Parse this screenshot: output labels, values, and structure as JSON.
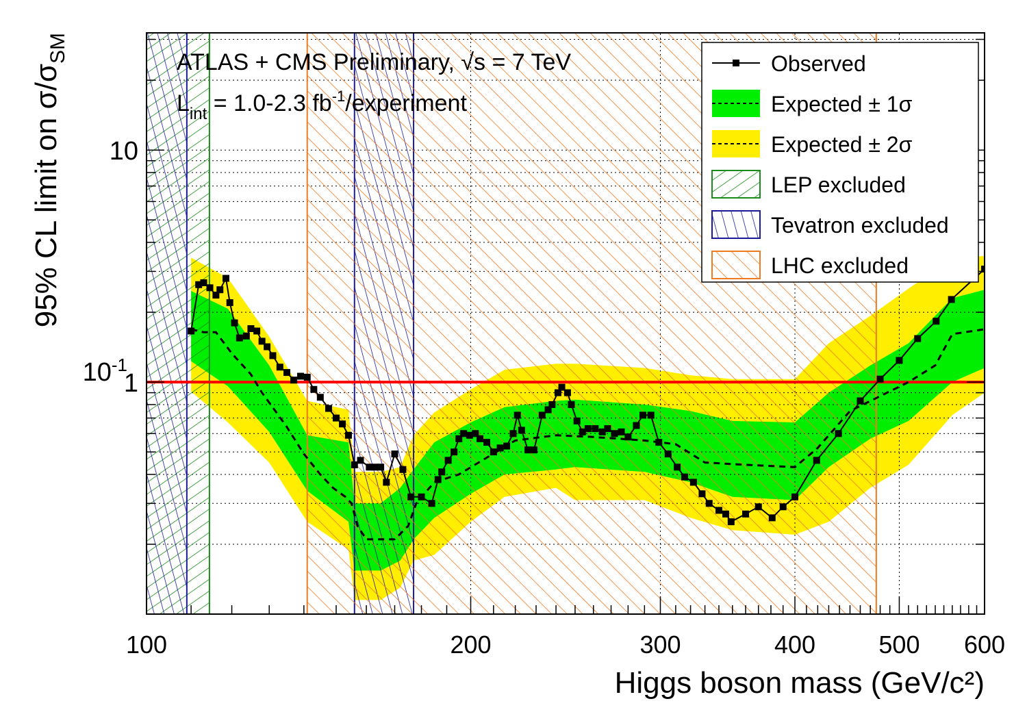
{
  "chart_data": {
    "type": "line",
    "title_line1": "ATLAS + CMS Preliminary, √s = 7 TeV",
    "title_line2": {
      "l": "L",
      "l_sub": "int",
      "mid": " = 1.0-2.3 fb",
      "sup": "-1",
      "end": "/experiment"
    },
    "xlabel": "Higgs boson mass (GeV/c²)",
    "ylabel": "95% CL limit on σ/σ",
    "ylabel_sub": "SM",
    "xscale": "log",
    "yscale": "log",
    "xlim": [
      100,
      600
    ],
    "ylim": [
      0.1,
      32
    ],
    "x_ticks": [
      "100",
      "200",
      "300",
      "400",
      "500",
      "600"
    ],
    "y_ticks": [
      {
        "base": "10",
        "exp": "-1"
      },
      {
        "base": "1",
        "exp": ""
      },
      {
        "base": "10",
        "exp": ""
      }
    ],
    "grid": true,
    "legend_position": "top-right",
    "reference_line": {
      "y": 1,
      "color": "#ff0000"
    },
    "colors": {
      "observed": "#000000",
      "band1": "#00ee00",
      "band2": "#ffee00",
      "lep": "#1a8a1a",
      "tevatron": "#1a1a99",
      "lhc": "#f07a20"
    },
    "legend": [
      {
        "label": "Observed",
        "kind": "observed"
      },
      {
        "label": "Expected ± 1σ",
        "kind": "band1"
      },
      {
        "label": "Expected ± 2σ",
        "kind": "band2"
      },
      {
        "label": "LEP excluded",
        "kind": "lep"
      },
      {
        "label": "Tevatron excluded",
        "kind": "tevatron"
      },
      {
        "label": "LHC excluded",
        "kind": "lhc"
      }
    ],
    "excluded_regions": [
      {
        "name": "LEP excluded",
        "kind": "lep",
        "range": [
          100,
          114.4
        ]
      },
      {
        "name": "Tevatron excluded",
        "kind": "tevatron",
        "range": [
          100,
          109
        ]
      },
      {
        "name": "Tevatron excluded",
        "kind": "tevatron",
        "range": [
          156,
          177
        ]
      },
      {
        "name": "LHC excluded",
        "kind": "lhc",
        "range": [
          141,
          476
        ]
      }
    ],
    "observed": [
      [
        110,
        1.66
      ],
      [
        111.8,
        2.63
      ],
      [
        113,
        2.68
      ],
      [
        114.5,
        2.55
      ],
      [
        116,
        2.37
      ],
      [
        117,
        2.5
      ],
      [
        118.5,
        2.8
      ],
      [
        119.5,
        2.2
      ],
      [
        120.7,
        1.8
      ],
      [
        122,
        1.55
      ],
      [
        123.8,
        1.58
      ],
      [
        125,
        1.7
      ],
      [
        126.6,
        1.66
      ],
      [
        128,
        1.5
      ],
      [
        129.4,
        1.42
      ],
      [
        131,
        1.3
      ],
      [
        133,
        1.16
      ],
      [
        135,
        1.1
      ],
      [
        137,
        1.02
      ],
      [
        139,
        1.06
      ],
      [
        141,
        1.05
      ],
      [
        143,
        0.93
      ],
      [
        145,
        0.86
      ],
      [
        147.6,
        0.77
      ],
      [
        150,
        0.7
      ],
      [
        152,
        0.66
      ],
      [
        154,
        0.59
      ],
      [
        156,
        0.44
      ],
      [
        158,
        0.46
      ],
      [
        161,
        0.43
      ],
      [
        163,
        0.43
      ],
      [
        165,
        0.43
      ],
      [
        167,
        0.37
      ],
      [
        170,
        0.49
      ],
      [
        173,
        0.42
      ],
      [
        176,
        0.32
      ],
      [
        180,
        0.32
      ],
      [
        184,
        0.3
      ],
      [
        186.5,
        0.38
      ],
      [
        188,
        0.41
      ],
      [
        190.6,
        0.46
      ],
      [
        193,
        0.5
      ],
      [
        195,
        0.57
      ],
      [
        197,
        0.6
      ],
      [
        199.5,
        0.59
      ],
      [
        202,
        0.6
      ],
      [
        204,
        0.57
      ],
      [
        207,
        0.55
      ],
      [
        210,
        0.5
      ],
      [
        213,
        0.52
      ],
      [
        216,
        0.53
      ],
      [
        219,
        0.6
      ],
      [
        221,
        0.72
      ],
      [
        223,
        0.62
      ],
      [
        226,
        0.51
      ],
      [
        229,
        0.51
      ],
      [
        233,
        0.72
      ],
      [
        236,
        0.76
      ],
      [
        238,
        0.8
      ],
      [
        241,
        0.9
      ],
      [
        243,
        0.95
      ],
      [
        246,
        0.9
      ],
      [
        248,
        0.8
      ],
      [
        251,
        0.68
      ],
      [
        254,
        0.61
      ],
      [
        257,
        0.63
      ],
      [
        261,
        0.63
      ],
      [
        265,
        0.61
      ],
      [
        268,
        0.63
      ],
      [
        272,
        0.6
      ],
      [
        276,
        0.61
      ],
      [
        280,
        0.58
      ],
      [
        285,
        0.65
      ],
      [
        289,
        0.72
      ],
      [
        294,
        0.72
      ],
      [
        299,
        0.55
      ],
      [
        305,
        0.49
      ],
      [
        311,
        0.43
      ],
      [
        316,
        0.39
      ],
      [
        322,
        0.37
      ],
      [
        328,
        0.33
      ],
      [
        333,
        0.3
      ],
      [
        340,
        0.28
      ],
      [
        345,
        0.27
      ],
      [
        349,
        0.25
      ],
      [
        360,
        0.27
      ],
      [
        370,
        0.29
      ],
      [
        381,
        0.26
      ],
      [
        390,
        0.29
      ],
      [
        400,
        0.32
      ],
      [
        419,
        0.46
      ],
      [
        439,
        0.6
      ],
      [
        460,
        0.83
      ],
      [
        480,
        1.03
      ],
      [
        500,
        1.24
      ],
      [
        520,
        1.54
      ],
      [
        541,
        1.83
      ],
      [
        559,
        2.27
      ],
      [
        600,
        3.07
      ]
    ],
    "expected_median": [
      [
        110,
        1.69
      ],
      [
        113,
        1.64
      ],
      [
        116,
        1.64
      ],
      [
        120,
        1.33
      ],
      [
        125,
        1.08
      ],
      [
        128,
        0.9
      ],
      [
        132,
        0.74
      ],
      [
        135,
        0.64
      ],
      [
        140,
        0.49
      ],
      [
        145,
        0.4
      ],
      [
        149,
        0.35
      ],
      [
        153,
        0.32
      ],
      [
        155,
        0.3
      ],
      [
        157,
        0.24
      ],
      [
        160,
        0.21
      ],
      [
        170,
        0.21
      ],
      [
        175,
        0.24
      ],
      [
        178,
        0.3
      ],
      [
        185,
        0.37
      ],
      [
        195,
        0.4
      ],
      [
        205,
        0.46
      ],
      [
        220,
        0.56
      ],
      [
        240,
        0.59
      ],
      [
        260,
        0.58
      ],
      [
        290,
        0.56
      ],
      [
        310,
        0.54
      ],
      [
        330,
        0.45
      ],
      [
        360,
        0.44
      ],
      [
        400,
        0.43
      ],
      [
        420,
        0.52
      ],
      [
        450,
        0.75
      ],
      [
        480,
        0.87
      ],
      [
        510,
        1.0
      ],
      [
        540,
        1.18
      ],
      [
        560,
        1.61
      ],
      [
        600,
        1.69
      ]
    ],
    "bands": {
      "x": [
        110,
        119,
        130,
        141,
        154,
        156,
        165,
        172,
        177,
        185,
        200,
        215,
        240,
        250,
        290,
        320,
        350,
        400,
        430,
        470,
        510,
        560,
        600
      ],
      "minus2sigma": [
        0.91,
        0.67,
        0.45,
        0.25,
        0.19,
        0.115,
        0.115,
        0.13,
        0.17,
        0.18,
        0.25,
        0.32,
        0.35,
        0.31,
        0.31,
        0.26,
        0.23,
        0.22,
        0.25,
        0.35,
        0.44,
        0.72,
        0.9
      ],
      "minus1sigma": [
        1.23,
        0.96,
        0.61,
        0.34,
        0.25,
        0.154,
        0.154,
        0.17,
        0.21,
        0.26,
        0.33,
        0.4,
        0.42,
        0.43,
        0.41,
        0.37,
        0.32,
        0.31,
        0.43,
        0.57,
        0.68,
        1.0,
        1.15
      ],
      "plus1sigma": [
        2.47,
        2.07,
        1.18,
        0.59,
        0.55,
        0.3,
        0.3,
        0.35,
        0.42,
        0.55,
        0.67,
        0.78,
        0.83,
        0.84,
        0.8,
        0.75,
        0.68,
        0.67,
        0.9,
        1.18,
        1.47,
        2.3,
        2.5
      ],
      "plus2sigma": [
        3.44,
        2.81,
        1.57,
        0.83,
        0.76,
        0.41,
        0.41,
        0.43,
        0.59,
        0.74,
        0.93,
        1.13,
        1.2,
        1.2,
        1.15,
        1.07,
        1.03,
        1.03,
        1.47,
        1.93,
        2.53,
        3.4,
        3.5
      ]
    }
  }
}
